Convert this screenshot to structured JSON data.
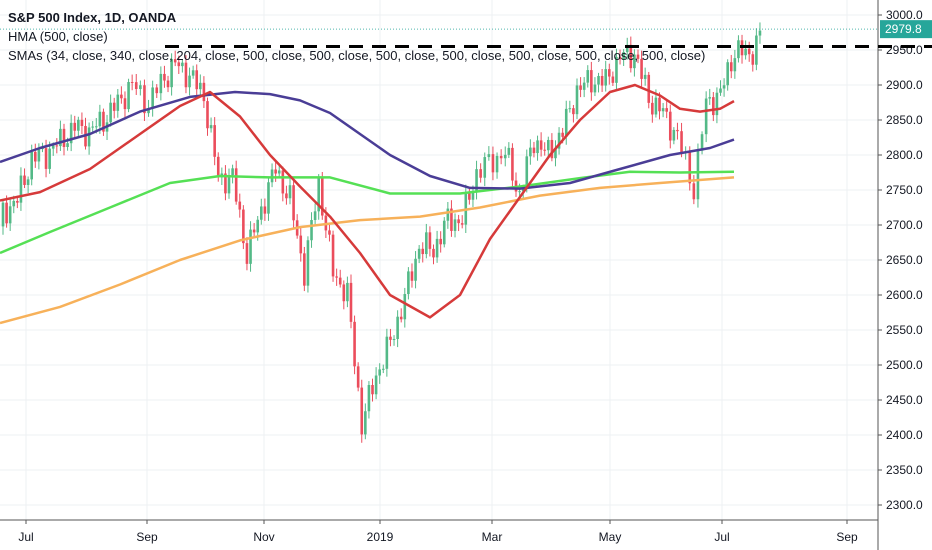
{
  "legend": {
    "title": "S&P 500 Index, 1D, OANDA",
    "hma": "HMA (500, close)",
    "smas": "SMAs (34, close, 340, close, 204, close, 500, close, 500, close, 500, close, 500, close, 500, close, 500, close, 500, close)"
  },
  "chart_data": {
    "type": "candlestick",
    "title": "S&P 500 Index, 1D, OANDA",
    "x_ticks": [
      "Jul",
      "Sep",
      "Nov",
      "2019",
      "Mar",
      "May",
      "Jul",
      "Sep"
    ],
    "y_ticks": [
      3000,
      2950,
      2900,
      2850,
      2800,
      2750,
      2700,
      2650,
      2600,
      2550,
      2500,
      2450,
      2400,
      2350,
      2300
    ],
    "ylim": [
      2290,
      3010
    ],
    "last_price_label": "2979.8",
    "last_price": 2979.8,
    "resistance_level": 2955,
    "colors": {
      "up": "#53b987",
      "down": "#eb4d5c",
      "hma": "#4a3d96",
      "sma34": "#d63a3a",
      "sma204": "#55e055",
      "sma340": "#f7b15a",
      "last_price": "#26a69a"
    },
    "close_series": [
      {
        "date": "2018-06-25",
        "close": 2718
      },
      {
        "date": "2018-07-02",
        "close": 2736
      },
      {
        "date": "2018-07-09",
        "close": 2795
      },
      {
        "date": "2018-07-16",
        "close": 2802
      },
      {
        "date": "2018-07-23",
        "close": 2819
      },
      {
        "date": "2018-07-30",
        "close": 2840
      },
      {
        "date": "2018-08-06",
        "close": 2833
      },
      {
        "date": "2018-08-13",
        "close": 2850
      },
      {
        "date": "2018-08-20",
        "close": 2874
      },
      {
        "date": "2018-08-27",
        "close": 2901
      },
      {
        "date": "2018-09-04",
        "close": 2872
      },
      {
        "date": "2018-09-10",
        "close": 2904
      },
      {
        "date": "2018-09-17",
        "close": 2930
      },
      {
        "date": "2018-09-24",
        "close": 2914
      },
      {
        "date": "2018-10-01",
        "close": 2885
      },
      {
        "date": "2018-10-08",
        "close": 2767
      },
      {
        "date": "2018-10-15",
        "close": 2767
      },
      {
        "date": "2018-10-22",
        "close": 2658
      },
      {
        "date": "2018-10-29",
        "close": 2723
      },
      {
        "date": "2018-11-05",
        "close": 2781
      },
      {
        "date": "2018-11-12",
        "close": 2736
      },
      {
        "date": "2018-11-19",
        "close": 2633
      },
      {
        "date": "2018-11-26",
        "close": 2760
      },
      {
        "date": "2018-12-03",
        "close": 2633
      },
      {
        "date": "2018-12-10",
        "close": 2600
      },
      {
        "date": "2018-12-17",
        "close": 2416
      },
      {
        "date": "2018-12-24",
        "close": 2485
      },
      {
        "date": "2018-12-31",
        "close": 2532
      },
      {
        "date": "2019-01-07",
        "close": 2596
      },
      {
        "date": "2019-01-14",
        "close": 2670
      },
      {
        "date": "2019-01-21",
        "close": 2665
      },
      {
        "date": "2019-01-28",
        "close": 2707
      },
      {
        "date": "2019-02-04",
        "close": 2707
      },
      {
        "date": "2019-02-11",
        "close": 2775
      },
      {
        "date": "2019-02-19",
        "close": 2793
      },
      {
        "date": "2019-02-25",
        "close": 2803
      },
      {
        "date": "2019-03-04",
        "close": 2743
      },
      {
        "date": "2019-03-11",
        "close": 2822
      },
      {
        "date": "2019-03-18",
        "close": 2801
      },
      {
        "date": "2019-03-25",
        "close": 2834
      },
      {
        "date": "2019-04-01",
        "close": 2893
      },
      {
        "date": "2019-04-08",
        "close": 2907
      },
      {
        "date": "2019-04-15",
        "close": 2905
      },
      {
        "date": "2019-04-22",
        "close": 2940
      },
      {
        "date": "2019-04-29",
        "close": 2946
      },
      {
        "date": "2019-05-06",
        "close": 2881
      },
      {
        "date": "2019-05-13",
        "close": 2860
      },
      {
        "date": "2019-05-20",
        "close": 2826
      },
      {
        "date": "2019-05-28",
        "close": 2752
      },
      {
        "date": "2019-06-03",
        "close": 2873
      },
      {
        "date": "2019-06-10",
        "close": 2887
      },
      {
        "date": "2019-06-17",
        "close": 2950
      },
      {
        "date": "2019-06-24",
        "close": 2942
      },
      {
        "date": "2019-07-01",
        "close": 2979.8
      }
    ],
    "indicators": {
      "hma_500": [
        [
          0,
          2790
        ],
        [
          40,
          2810
        ],
        [
          90,
          2830
        ],
        [
          140,
          2862
        ],
        [
          190,
          2883
        ],
        [
          235,
          2890
        ],
        [
          270,
          2887
        ],
        [
          300,
          2878
        ],
        [
          330,
          2860
        ],
        [
          360,
          2830
        ],
        [
          390,
          2800
        ],
        [
          430,
          2770
        ],
        [
          470,
          2753
        ],
        [
          520,
          2752
        ],
        [
          570,
          2760
        ],
        [
          620,
          2780
        ],
        [
          670,
          2800
        ],
        [
          710,
          2810
        ],
        [
          734,
          2822
        ]
      ],
      "sma_34": [
        [
          0,
          2735
        ],
        [
          40,
          2747
        ],
        [
          90,
          2780
        ],
        [
          140,
          2830
        ],
        [
          180,
          2870
        ],
        [
          210,
          2890
        ],
        [
          240,
          2855
        ],
        [
          270,
          2800
        ],
        [
          300,
          2755
        ],
        [
          330,
          2712
        ],
        [
          360,
          2660
        ],
        [
          390,
          2600
        ],
        [
          430,
          2568
        ],
        [
          460,
          2600
        ],
        [
          490,
          2680
        ],
        [
          520,
          2740
        ],
        [
          550,
          2800
        ],
        [
          580,
          2850
        ],
        [
          610,
          2890
        ],
        [
          635,
          2900
        ],
        [
          660,
          2885
        ],
        [
          680,
          2866
        ],
        [
          700,
          2862
        ],
        [
          720,
          2866
        ],
        [
          734,
          2877
        ]
      ],
      "sma_204": [
        [
          0,
          2660
        ],
        [
          50,
          2690
        ],
        [
          110,
          2725
        ],
        [
          170,
          2760
        ],
        [
          220,
          2770
        ],
        [
          270,
          2768
        ],
        [
          330,
          2768
        ],
        [
          390,
          2745
        ],
        [
          460,
          2745
        ],
        [
          520,
          2755
        ],
        [
          580,
          2767
        ],
        [
          630,
          2776
        ],
        [
          680,
          2775
        ],
        [
          734,
          2776
        ]
      ],
      "sma_340": [
        [
          0,
          2560
        ],
        [
          60,
          2583
        ],
        [
          120,
          2615
        ],
        [
          180,
          2650
        ],
        [
          240,
          2678
        ],
        [
          300,
          2697
        ],
        [
          360,
          2707
        ],
        [
          420,
          2712
        ],
        [
          480,
          2725
        ],
        [
          540,
          2742
        ],
        [
          600,
          2753
        ],
        [
          660,
          2760
        ],
        [
          734,
          2768
        ]
      ]
    }
  }
}
